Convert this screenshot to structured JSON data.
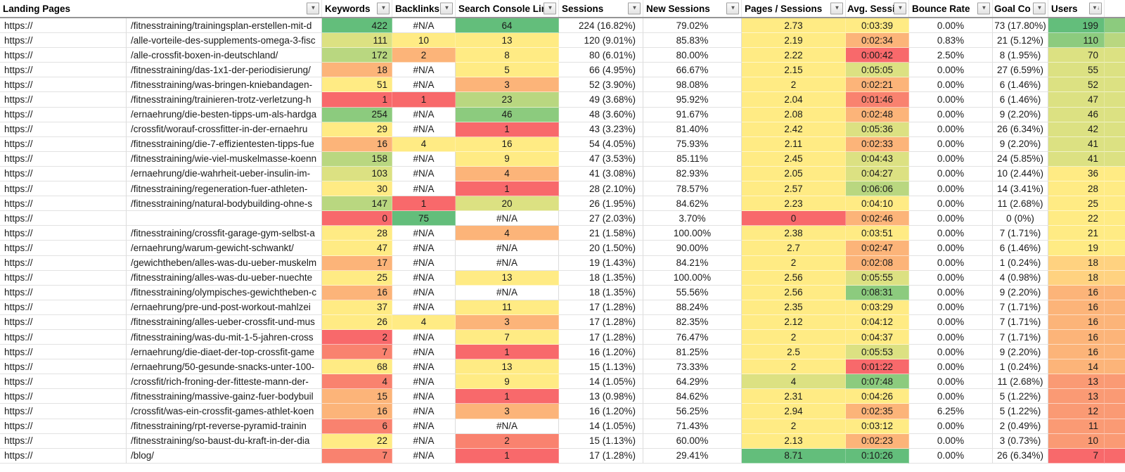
{
  "palette": {
    "g1": "#63BE7B",
    "g2": "#8CCB7E",
    "g3": "#B9D780",
    "yg": "#DCE182",
    "y": "#FFEB84",
    "lo": "#FFD280",
    "o": "#FCB479",
    "o2": "#FA9A74",
    "ro": "#F9826F",
    "r": "#F8696B"
  },
  "header": {
    "landing_label": "Landing Pages",
    "filter_icon": "▼",
    "users_sort_icon": "▼↓",
    "cols": [
      {
        "label": "Keywords"
      },
      {
        "label": "Backlinks"
      },
      {
        "label": "Search Console Links"
      },
      {
        "label": "Sessions"
      },
      {
        "label": "New Sessions"
      },
      {
        "label": "Pages / Sessions"
      },
      {
        "label": "Avg. Sessions"
      },
      {
        "label": "Bounce Rate"
      },
      {
        "label": "Goal Co"
      },
      {
        "label": "Users"
      }
    ]
  },
  "rows": [
    {
      "prefix": "https://",
      "path": "/fitnesstraining/trainingsplan-erstellen-mit-d",
      "kw": "422",
      "kw_c": "g1",
      "bl": "#N/A",
      "bl_c": null,
      "sc": "64",
      "sc_c": "g1",
      "sess": "224 (16.82%)",
      "ns": "79.02%",
      "ps": "2.73",
      "ps_c": "y",
      "avg": "0:03:39",
      "avg_c": "y",
      "br": "0.00%",
      "goal": "73 (17.80%)",
      "users": "199",
      "users_c": "g1",
      "edge_c": "g2"
    },
    {
      "prefix": "https://",
      "path": "/alle-vorteile-des-supplements-omega-3-fisc",
      "kw": "111",
      "kw_c": "yg",
      "bl": "10",
      "bl_c": "y",
      "sc": "13",
      "sc_c": "y",
      "sess": "120 (9.01%)",
      "ns": "85.83%",
      "ps": "2.19",
      "ps_c": "y",
      "avg": "0:02:34",
      "avg_c": "o",
      "br": "0.83%",
      "goal": "21 (5.12%)",
      "users": "110",
      "users_c": "g2",
      "edge_c": "g3"
    },
    {
      "prefix": "https://",
      "path": "/alle-crossfit-boxen-in-deutschland/",
      "kw": "172",
      "kw_c": "g3",
      "bl": "2",
      "bl_c": "o",
      "sc": "8",
      "sc_c": "y",
      "sess": "80 (6.01%)",
      "ns": "80.00%",
      "ps": "2.22",
      "ps_c": "y",
      "avg": "0:00:42",
      "avg_c": "r",
      "br": "2.50%",
      "goal": "8 (1.95%)",
      "users": "70",
      "users_c": "yg",
      "edge_c": "yg"
    },
    {
      "prefix": "https://",
      "path": "/fitnesstraining/das-1x1-der-periodisierung/",
      "kw": "18",
      "kw_c": "o",
      "bl": "#N/A",
      "bl_c": null,
      "sc": "5",
      "sc_c": "y",
      "sess": "66 (4.95%)",
      "ns": "66.67%",
      "ps": "2.15",
      "ps_c": "y",
      "avg": "0:05:05",
      "avg_c": "yg",
      "br": "0.00%",
      "goal": "27 (6.59%)",
      "users": "55",
      "users_c": "yg",
      "edge_c": "yg"
    },
    {
      "prefix": "https://",
      "path": "/fitnesstraining/was-bringen-kniebandagen-",
      "kw": "51",
      "kw_c": "y",
      "bl": "#N/A",
      "bl_c": null,
      "sc": "3",
      "sc_c": "o",
      "sess": "52 (3.90%)",
      "ns": "98.08%",
      "ps": "2",
      "ps_c": "y",
      "avg": "0:02:21",
      "avg_c": "o",
      "br": "0.00%",
      "goal": "6 (1.46%)",
      "users": "52",
      "users_c": "yg",
      "edge_c": "yg"
    },
    {
      "prefix": "https://",
      "path": "/fitnesstraining/trainieren-trotz-verletzung-h",
      "kw": "1",
      "kw_c": "r",
      "bl": "1",
      "bl_c": "r",
      "sc": "23",
      "sc_c": "g3",
      "sess": "49 (3.68%)",
      "ns": "95.92%",
      "ps": "2.04",
      "ps_c": "y",
      "avg": "0:01:46",
      "avg_c": "ro",
      "br": "0.00%",
      "goal": "6 (1.46%)",
      "users": "47",
      "users_c": "yg",
      "edge_c": "yg"
    },
    {
      "prefix": "https://",
      "path": "/ernaehrung/die-besten-tipps-um-als-hardga",
      "kw": "254",
      "kw_c": "g2",
      "bl": "#N/A",
      "bl_c": null,
      "sc": "46",
      "sc_c": "g2",
      "sess": "48 (3.60%)",
      "ns": "91.67%",
      "ps": "2.08",
      "ps_c": "y",
      "avg": "0:02:48",
      "avg_c": "o",
      "br": "0.00%",
      "goal": "9 (2.20%)",
      "users": "46",
      "users_c": "yg",
      "edge_c": "yg"
    },
    {
      "prefix": "https://",
      "path": "/crossfit/worauf-crossfitter-in-der-ernaehru",
      "kw": "29",
      "kw_c": "y",
      "bl": "#N/A",
      "bl_c": null,
      "sc": "1",
      "sc_c": "r",
      "sess": "43 (3.23%)",
      "ns": "81.40%",
      "ps": "2.42",
      "ps_c": "y",
      "avg": "0:05:36",
      "avg_c": "yg",
      "br": "0.00%",
      "goal": "26 (6.34%)",
      "users": "42",
      "users_c": "yg",
      "edge_c": "yg"
    },
    {
      "prefix": "https://",
      "path": "/fitnesstraining/die-7-effizientesten-tipps-fue",
      "kw": "16",
      "kw_c": "o",
      "bl": "4",
      "bl_c": "y",
      "sc": "16",
      "sc_c": "y",
      "sess": "54 (4.05%)",
      "ns": "75.93%",
      "ps": "2.11",
      "ps_c": "y",
      "avg": "0:02:33",
      "avg_c": "o",
      "br": "0.00%",
      "goal": "9 (2.20%)",
      "users": "41",
      "users_c": "yg",
      "edge_c": "yg"
    },
    {
      "prefix": "https://",
      "path": "/fitnesstraining/wie-viel-muskelmasse-koenn",
      "kw": "158",
      "kw_c": "g3",
      "bl": "#N/A",
      "bl_c": null,
      "sc": "9",
      "sc_c": "y",
      "sess": "47 (3.53%)",
      "ns": "85.11%",
      "ps": "2.45",
      "ps_c": "y",
      "avg": "0:04:43",
      "avg_c": "yg",
      "br": "0.00%",
      "goal": "24 (5.85%)",
      "users": "41",
      "users_c": "yg",
      "edge_c": "yg"
    },
    {
      "prefix": "https://",
      "path": "/ernaehrung/die-wahrheit-ueber-insulin-im-",
      "kw": "103",
      "kw_c": "yg",
      "bl": "#N/A",
      "bl_c": null,
      "sc": "4",
      "sc_c": "o",
      "sess": "41 (3.08%)",
      "ns": "82.93%",
      "ps": "2.05",
      "ps_c": "y",
      "avg": "0:04:27",
      "avg_c": "yg",
      "br": "0.00%",
      "goal": "10 (2.44%)",
      "users": "36",
      "users_c": "y",
      "edge_c": "y"
    },
    {
      "prefix": "https://",
      "path": "/fitnesstraining/regeneration-fuer-athleten-",
      "kw": "30",
      "kw_c": "y",
      "bl": "#N/A",
      "bl_c": null,
      "sc": "1",
      "sc_c": "r",
      "sess": "28 (2.10%)",
      "ns": "78.57%",
      "ps": "2.57",
      "ps_c": "y",
      "avg": "0:06:06",
      "avg_c": "g3",
      "br": "0.00%",
      "goal": "14 (3.41%)",
      "users": "28",
      "users_c": "y",
      "edge_c": "y"
    },
    {
      "prefix": "https://",
      "path": "/fitnesstraining/natural-bodybuilding-ohne-s",
      "kw": "147",
      "kw_c": "g3",
      "bl": "1",
      "bl_c": "r",
      "sc": "20",
      "sc_c": "yg",
      "sess": "26 (1.95%)",
      "ns": "84.62%",
      "ps": "2.23",
      "ps_c": "y",
      "avg": "0:04:10",
      "avg_c": "y",
      "br": "0.00%",
      "goal": "11 (2.68%)",
      "users": "25",
      "users_c": "y",
      "edge_c": "y"
    },
    {
      "prefix": "https://",
      "path": "",
      "kw": "0",
      "kw_c": "r",
      "bl": "75",
      "bl_c": "g1",
      "sc": "#N/A",
      "sc_c": null,
      "sess": "27 (2.03%)",
      "ns": "3.70%",
      "ps": "0",
      "ps_c": "r",
      "avg": "0:02:46",
      "avg_c": "o",
      "br": "0.00%",
      "goal": "0 (0%)",
      "users": "22",
      "users_c": "y",
      "edge_c": "y"
    },
    {
      "prefix": "https://",
      "path": "/fitnesstraining/crossfit-garage-gym-selbst-a",
      "kw": "28",
      "kw_c": "y",
      "bl": "#N/A",
      "bl_c": null,
      "sc": "4",
      "sc_c": "o",
      "sess": "21 (1.58%)",
      "ns": "100.00%",
      "ps": "2.38",
      "ps_c": "y",
      "avg": "0:03:51",
      "avg_c": "y",
      "br": "0.00%",
      "goal": "7 (1.71%)",
      "users": "21",
      "users_c": "y",
      "edge_c": "y"
    },
    {
      "prefix": "https://",
      "path": "/ernaehrung/warum-gewicht-schwankt/",
      "kw": "47",
      "kw_c": "y",
      "bl": "#N/A",
      "bl_c": null,
      "sc": "#N/A",
      "sc_c": null,
      "sess": "20 (1.50%)",
      "ns": "90.00%",
      "ps": "2.7",
      "ps_c": "y",
      "avg": "0:02:47",
      "avg_c": "o",
      "br": "0.00%",
      "goal": "6 (1.46%)",
      "users": "19",
      "users_c": "y",
      "edge_c": "y"
    },
    {
      "prefix": "https://",
      "path": "/gewichtheben/alles-was-du-ueber-muskelm",
      "kw": "17",
      "kw_c": "o",
      "bl": "#N/A",
      "bl_c": null,
      "sc": "#N/A",
      "sc_c": null,
      "sess": "19 (1.43%)",
      "ns": "84.21%",
      "ps": "2",
      "ps_c": "y",
      "avg": "0:02:08",
      "avg_c": "o",
      "br": "0.00%",
      "goal": "1 (0.24%)",
      "users": "18",
      "users_c": "lo",
      "edge_c": "lo"
    },
    {
      "prefix": "https://",
      "path": "/fitnesstraining/alles-was-du-ueber-nuechte",
      "kw": "25",
      "kw_c": "y",
      "bl": "#N/A",
      "bl_c": null,
      "sc": "13",
      "sc_c": "y",
      "sess": "18 (1.35%)",
      "ns": "100.00%",
      "ps": "2.56",
      "ps_c": "y",
      "avg": "0:05:55",
      "avg_c": "yg",
      "br": "0.00%",
      "goal": "4 (0.98%)",
      "users": "18",
      "users_c": "lo",
      "edge_c": "lo"
    },
    {
      "prefix": "https://",
      "path": "/fitnesstraining/olympisches-gewichtheben-c",
      "kw": "16",
      "kw_c": "o",
      "bl": "#N/A",
      "bl_c": null,
      "sc": "#N/A",
      "sc_c": null,
      "sess": "18 (1.35%)",
      "ns": "55.56%",
      "ps": "2.56",
      "ps_c": "y",
      "avg": "0:08:31",
      "avg_c": "g2",
      "br": "0.00%",
      "goal": "9 (2.20%)",
      "users": "16",
      "users_c": "o",
      "edge_c": "o"
    },
    {
      "prefix": "https://",
      "path": "/ernaehrung/pre-und-post-workout-mahlzei",
      "kw": "37",
      "kw_c": "y",
      "bl": "#N/A",
      "bl_c": null,
      "sc": "11",
      "sc_c": "y",
      "sess": "17 (1.28%)",
      "ns": "88.24%",
      "ps": "2.35",
      "ps_c": "y",
      "avg": "0:03:29",
      "avg_c": "y",
      "br": "0.00%",
      "goal": "7 (1.71%)",
      "users": "16",
      "users_c": "o",
      "edge_c": "o"
    },
    {
      "prefix": "https://",
      "path": "/fitnesstraining/alles-ueber-crossfit-und-mus",
      "kw": "26",
      "kw_c": "y",
      "bl": "4",
      "bl_c": "y",
      "sc": "3",
      "sc_c": "o",
      "sess": "17 (1.28%)",
      "ns": "82.35%",
      "ps": "2.12",
      "ps_c": "y",
      "avg": "0:04:12",
      "avg_c": "y",
      "br": "0.00%",
      "goal": "7 (1.71%)",
      "users": "16",
      "users_c": "o",
      "edge_c": "o"
    },
    {
      "prefix": "https://",
      "path": "/fitnesstraining/was-du-mit-1-5-jahren-cross",
      "kw": "2",
      "kw_c": "r",
      "bl": "#N/A",
      "bl_c": null,
      "sc": "7",
      "sc_c": "y",
      "sess": "17 (1.28%)",
      "ns": "76.47%",
      "ps": "2",
      "ps_c": "y",
      "avg": "0:04:37",
      "avg_c": "y",
      "br": "0.00%",
      "goal": "7 (1.71%)",
      "users": "16",
      "users_c": "o",
      "edge_c": "o"
    },
    {
      "prefix": "https://",
      "path": "/ernaehrung/die-diaet-der-top-crossfit-game",
      "kw": "7",
      "kw_c": "ro",
      "bl": "#N/A",
      "bl_c": null,
      "sc": "1",
      "sc_c": "r",
      "sess": "16 (1.20%)",
      "ns": "81.25%",
      "ps": "2.5",
      "ps_c": "y",
      "avg": "0:05:53",
      "avg_c": "yg",
      "br": "0.00%",
      "goal": "9 (2.20%)",
      "users": "16",
      "users_c": "o",
      "edge_c": "o"
    },
    {
      "prefix": "https://",
      "path": "/ernaehrung/50-gesunde-snacks-unter-100-",
      "kw": "68",
      "kw_c": "y",
      "bl": "#N/A",
      "bl_c": null,
      "sc": "13",
      "sc_c": "y",
      "sess": "15 (1.13%)",
      "ns": "73.33%",
      "ps": "2",
      "ps_c": "y",
      "avg": "0:01:22",
      "avg_c": "r",
      "br": "0.00%",
      "goal": "1 (0.24%)",
      "users": "14",
      "users_c": "o",
      "edge_c": "o"
    },
    {
      "prefix": "https://",
      "path": "/crossfit/rich-froning-der-fitteste-mann-der-",
      "kw": "4",
      "kw_c": "ro",
      "bl": "#N/A",
      "bl_c": null,
      "sc": "9",
      "sc_c": "y",
      "sess": "14 (1.05%)",
      "ns": "64.29%",
      "ps": "4",
      "ps_c": "yg",
      "avg": "0:07:48",
      "avg_c": "g2",
      "br": "0.00%",
      "goal": "11 (2.68%)",
      "users": "13",
      "users_c": "o2",
      "edge_c": "o2"
    },
    {
      "prefix": "https://",
      "path": "/fitnesstraining/massive-gainz-fuer-bodybuil",
      "kw": "15",
      "kw_c": "o",
      "bl": "#N/A",
      "bl_c": null,
      "sc": "1",
      "sc_c": "r",
      "sess": "13 (0.98%)",
      "ns": "84.62%",
      "ps": "2.31",
      "ps_c": "y",
      "avg": "0:04:26",
      "avg_c": "y",
      "br": "0.00%",
      "goal": "5 (1.22%)",
      "users": "13",
      "users_c": "o2",
      "edge_c": "o2"
    },
    {
      "prefix": "https://",
      "path": "/crossfit/was-ein-crossfit-games-athlet-koen",
      "kw": "16",
      "kw_c": "o",
      "bl": "#N/A",
      "bl_c": null,
      "sc": "3",
      "sc_c": "o",
      "sess": "16 (1.20%)",
      "ns": "56.25%",
      "ps": "2.94",
      "ps_c": "y",
      "avg": "0:02:35",
      "avg_c": "o",
      "br": "6.25%",
      "goal": "5 (1.22%)",
      "users": "12",
      "users_c": "o2",
      "edge_c": "o2"
    },
    {
      "prefix": "https://",
      "path": "/fitnesstraining/rpt-reverse-pyramid-trainin",
      "kw": "6",
      "kw_c": "ro",
      "bl": "#N/A",
      "bl_c": null,
      "sc": "#N/A",
      "sc_c": null,
      "sess": "14 (1.05%)",
      "ns": "71.43%",
      "ps": "2",
      "ps_c": "y",
      "avg": "0:03:12",
      "avg_c": "y",
      "br": "0.00%",
      "goal": "2 (0.49%)",
      "users": "11",
      "users_c": "o2",
      "edge_c": "o2"
    },
    {
      "prefix": "https://",
      "path": "/fitnesstraining/so-baust-du-kraft-in-der-dia",
      "kw": "22",
      "kw_c": "y",
      "bl": "#N/A",
      "bl_c": null,
      "sc": "2",
      "sc_c": "ro",
      "sess": "15 (1.13%)",
      "ns": "60.00%",
      "ps": "2.13",
      "ps_c": "y",
      "avg": "0:02:23",
      "avg_c": "o",
      "br": "0.00%",
      "goal": "3 (0.73%)",
      "users": "10",
      "users_c": "o2",
      "edge_c": "o2"
    },
    {
      "prefix": "https://",
      "path": "/blog/",
      "kw": "7",
      "kw_c": "ro",
      "bl": "#N/A",
      "bl_c": null,
      "sc": "1",
      "sc_c": "r",
      "sess": "17 (1.28%)",
      "ns": "29.41%",
      "ps": "8.71",
      "ps_c": "g1",
      "avg": "0:10:26",
      "avg_c": "g1",
      "br": "0.00%",
      "goal": "26 (6.34%)",
      "users": "7",
      "users_c": "r",
      "edge_c": "r"
    }
  ]
}
